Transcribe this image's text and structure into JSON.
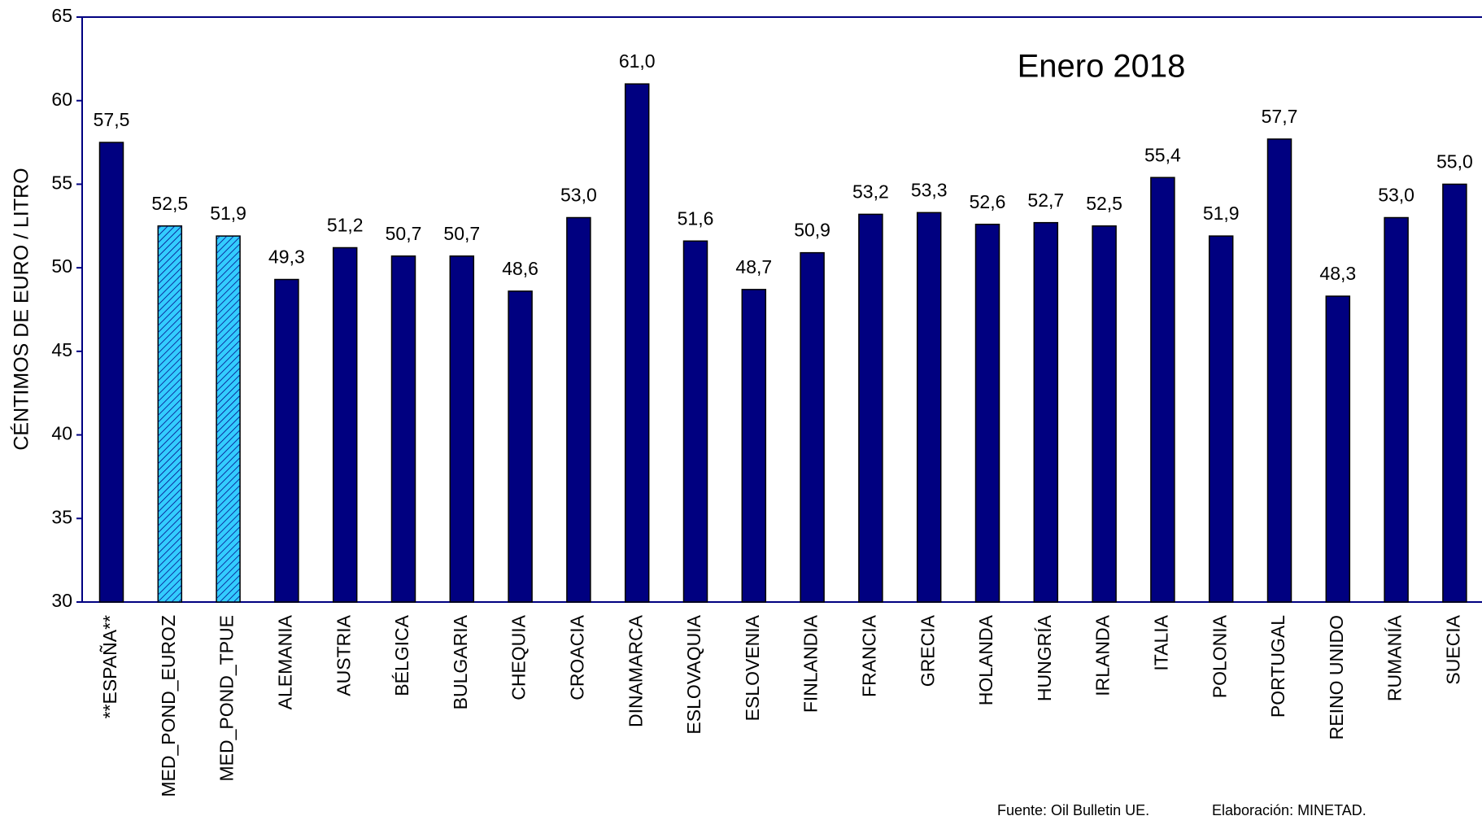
{
  "chart_data": {
    "type": "bar",
    "title": "Enero 2018",
    "y_label": "CÉNTIMOS DE EURO / LITRO",
    "source": "Fuente: Oil Bulletin UE.",
    "credit": "Elaboración: MINETAD.",
    "categories": [
      "**ESPAÑA**",
      "MED_POND_EUROZ",
      "MED_POND_TPUE",
      "ALEMANIA",
      "AUSTRIA",
      "BÉLGICA",
      "BULGARIA",
      "CHEQUIA",
      "CROACIA",
      "DINAMARCA",
      "ESLOVAQUIA",
      "ESLOVENIA",
      "FINLANDIA",
      "FRANCIA",
      "GRECIA",
      "HOLANDA",
      "HUNGRÍA",
      "IRLANDA",
      "ITALIA",
      "POLONIA",
      "PORTUGAL",
      "REINO UNIDO",
      "RUMANÍA",
      "SUECIA"
    ],
    "values": [
      57.5,
      52.5,
      51.9,
      49.3,
      51.2,
      50.7,
      50.7,
      48.6,
      53.0,
      61.0,
      51.6,
      48.7,
      50.9,
      53.2,
      53.3,
      52.6,
      52.7,
      52.5,
      55.4,
      51.9,
      57.7,
      48.3,
      53.0,
      55.0
    ],
    "value_labels": [
      "57,5",
      "52,5",
      "51,9",
      "49,3",
      "51,2",
      "50,7",
      "50,7",
      "48,6",
      "53,0",
      "61,0",
      "51,6",
      "48,7",
      "50,9",
      "53,2",
      "53,3",
      "52,6",
      "52,7",
      "52,5",
      "55,4",
      "51,9",
      "57,7",
      "48,3",
      "53,0",
      "55,0"
    ],
    "color": "#000080",
    "colors": [
      "#000080",
      "#33ccff",
      "#33ccff",
      "#000080",
      "#000080",
      "#000080",
      "#000080",
      "#000080",
      "#000080",
      "#000080",
      "#000080",
      "#000080",
      "#000080",
      "#000080",
      "#000080",
      "#000080",
      "#000080",
      "#000080",
      "#000080",
      "#000080",
      "#000080",
      "#000080",
      "#000080",
      "#000080"
    ],
    "ylim": [
      30,
      65
    ],
    "yticks": [
      30,
      35,
      40,
      45,
      50,
      55,
      60,
      65
    ],
    "grid": false
  }
}
